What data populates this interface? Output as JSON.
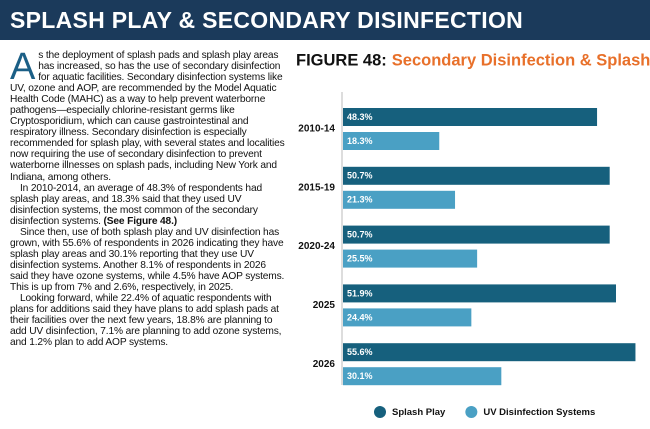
{
  "header": {
    "title": "SPLASH PLAY & SECONDARY DISINFECTION"
  },
  "article": {
    "drop_cap": "A",
    "paragraphs": [
      [
        "s the deployment of splash pads and splash play areas has increased, so has the use of secondary disinfection for aquatic facilities. Secondary disinfection systems like UV, ozone and AOP, are recommended by the Model Aquatic Health Code (MAHC) as a way to help prevent waterborne pathogens—especially chlorine-resistant germs like Cryptosporidium, which can cause gastrointestinal and respiratory illness. Secondary disinfection is especially recommended for splash play, with several states and localities now requiring the use of secondary disinfection to prevent waterborne illnesses on splash pads, including New York and Indiana, among others."
      ],
      [
        "In 2010-2014, an average of 48.3% of respondents had splash play areas, and 18.3% said that they used UV disinfection systems, the most common of the secondary disinfection systems. ",
        "(See Figure 48.)"
      ],
      [
        "Since then, use of both splash play and UV disinfection has grown, with 55.6% of respondents in 2026 indicating they have splash play areas and 30.1% reporting that they use UV disinfection systems. Another 8.1% of respondents in 2026 said they have ozone systems, while 4.5% have AOP systems. This is up from 7% and 2.6%, respectively, in 2025."
      ],
      [
        "Looking forward, while 22.4% of aquatic respondents with plans for additions said they have plans to add splash pads at their facilities over the next few years, 18.8% are planning to add UV disinfection, 7.1% are planning to add ozone systems, and 1.2% plan to add AOP systems."
      ]
    ]
  },
  "chart_data": {
    "type": "hbar",
    "figure_label": "FIGURE 48:",
    "title": "Secondary Disinfection & Splash Play",
    "categories": [
      "2010-14",
      "2015-19",
      "2020-24",
      "2025",
      "2026"
    ],
    "series": [
      {
        "name": "Splash Play",
        "color": "#16607d",
        "values": [
          48.3,
          50.7,
          50.7,
          51.9,
          55.6
        ],
        "value_labels": [
          "48.3%",
          "50.7%",
          "50.7%",
          "51.9%",
          "55.6%"
        ]
      },
      {
        "name": "UV Disinfection Systems",
        "color": "#4aa0c4",
        "values": [
          18.3,
          21.3,
          25.5,
          24.4,
          30.1
        ],
        "value_labels": [
          "18.3%",
          "21.3%",
          "25.5%",
          "24.4%",
          "30.1%"
        ]
      }
    ],
    "title_color": "#e8702a"
  }
}
